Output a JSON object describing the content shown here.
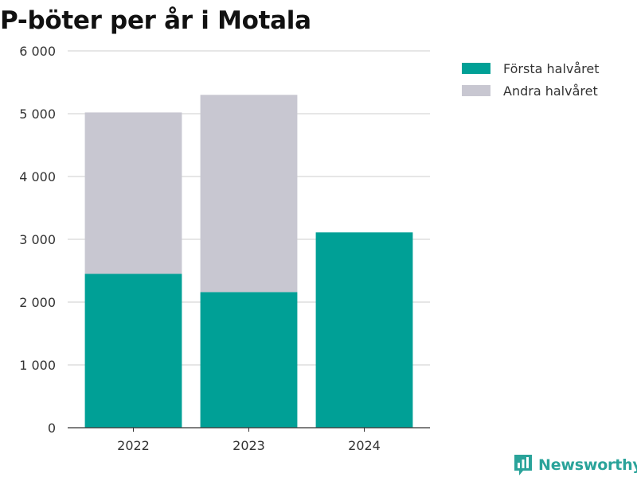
{
  "chart_data": {
    "type": "bar",
    "stacked": true,
    "title": "P-böter per år i Motala",
    "xlabel": "",
    "ylabel": "",
    "categories": [
      "2022",
      "2023",
      "2024"
    ],
    "series": [
      {
        "name": "Första halvåret",
        "color": "#00a096",
        "values": [
          2450,
          2160,
          3110
        ]
      },
      {
        "name": "Andra halvåret",
        "color": "#c8c7d1",
        "values": [
          2570,
          3140,
          0
        ]
      }
    ],
    "ylim": [
      0,
      6000
    ],
    "yticks": [
      0,
      1000,
      2000,
      3000,
      4000,
      5000,
      6000
    ],
    "ytick_labels": [
      "0",
      "1 000",
      "2 000",
      "3 000",
      "4 000",
      "5 000",
      "6 000"
    ],
    "grid": true,
    "legend_position": "top-right"
  },
  "branding": {
    "label": "Newsworthy",
    "icon": "newsworthy-logo-icon",
    "color": "#2aa39a"
  }
}
